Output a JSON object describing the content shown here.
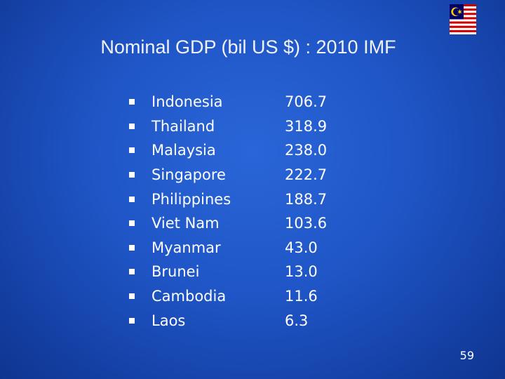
{
  "slide": {
    "title": "Nominal GDP (bil US $) : 2010 IMF",
    "page_number": "59",
    "flag_icon": "malaysia-flag",
    "colors": {
      "background": "#1f55c6",
      "text": "#ffffff"
    },
    "rows": [
      {
        "country": "Indonesia",
        "value": "706.7"
      },
      {
        "country": "Thailand",
        "value": "318.9"
      },
      {
        "country": "Malaysia",
        "value": "238.0"
      },
      {
        "country": "Singapore",
        "value": "222.7"
      },
      {
        "country": "Philippines",
        "value": "188.7"
      },
      {
        "country": "Viet Nam",
        "value": "103.6"
      },
      {
        "country": "Myanmar",
        "value": "43.0"
      },
      {
        "country": "Brunei",
        "value": "13.0"
      },
      {
        "country": "Cambodia",
        "value": "11.6"
      },
      {
        "country": "Laos",
        "value": "6.3"
      }
    ]
  }
}
